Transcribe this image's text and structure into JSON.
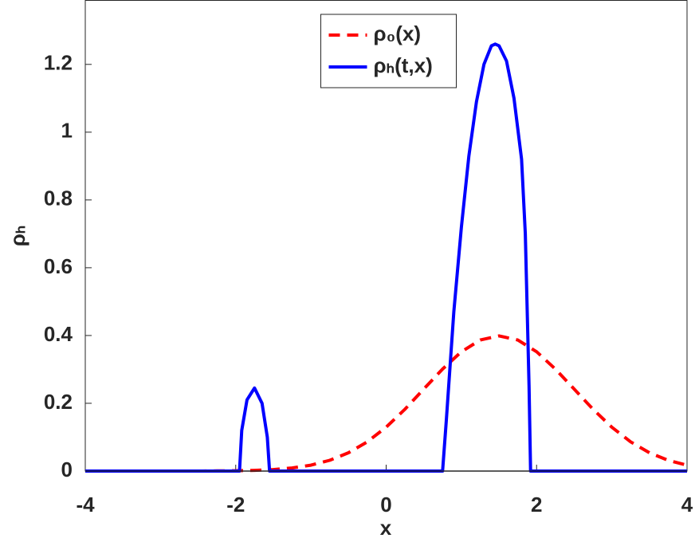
{
  "chart_data": {
    "type": "line",
    "xlabel": "x",
    "ylabel": "ρₕ",
    "xlim": [
      -4,
      4
    ],
    "xticks": [
      -4,
      -2,
      0,
      2,
      4
    ],
    "ylim": [
      0,
      1.39
    ],
    "yticks": [
      0,
      0.2,
      0.4,
      0.6,
      0.8,
      1,
      1.2
    ],
    "legend": "north",
    "grid": false,
    "series": [
      {
        "name": "ρ₀(x)",
        "color": "#ff0000",
        "dashed": true,
        "x": [
          -4,
          -3.75,
          -3.5,
          -3.25,
          -3,
          -2.75,
          -2.5,
          -2.25,
          -2,
          -1.75,
          -1.5,
          -1.25,
          -1,
          -0.75,
          -0.5,
          -0.25,
          0,
          0.25,
          0.5,
          0.75,
          1,
          1.25,
          1.5,
          1.75,
          2,
          2.25,
          2.5,
          2.75,
          3,
          3.25,
          3.5,
          3.75,
          4
        ],
        "values": [
          0,
          0,
          0,
          0,
          0,
          0,
          0.0001,
          0.0004,
          0.0009,
          0.002,
          0.0044,
          0.0091,
          0.0175,
          0.0317,
          0.054,
          0.0863,
          0.1295,
          0.1826,
          0.242,
          0.3011,
          0.3521,
          0.3867,
          0.3989,
          0.3867,
          0.3521,
          0.3011,
          0.242,
          0.1826,
          0.1295,
          0.0863,
          0.054,
          0.0317,
          0.0175
        ]
      },
      {
        "name": "ρₕ(t,x)",
        "color": "#0000ff",
        "dashed": false,
        "x": [
          -4,
          -1.95,
          -1.92,
          -1.85,
          -1.75,
          -1.65,
          -1.58,
          -1.55,
          0.75,
          0.8,
          0.9,
          1.0,
          1.1,
          1.2,
          1.3,
          1.4,
          1.45,
          1.5,
          1.6,
          1.7,
          1.8,
          1.85,
          1.9,
          1.92,
          4
        ],
        "values": [
          0,
          0,
          0.12,
          0.21,
          0.245,
          0.2,
          0.1,
          0,
          0,
          0.15,
          0.47,
          0.72,
          0.93,
          1.09,
          1.2,
          1.255,
          1.26,
          1.255,
          1.21,
          1.1,
          0.92,
          0.7,
          0.25,
          0,
          0
        ]
      }
    ]
  }
}
